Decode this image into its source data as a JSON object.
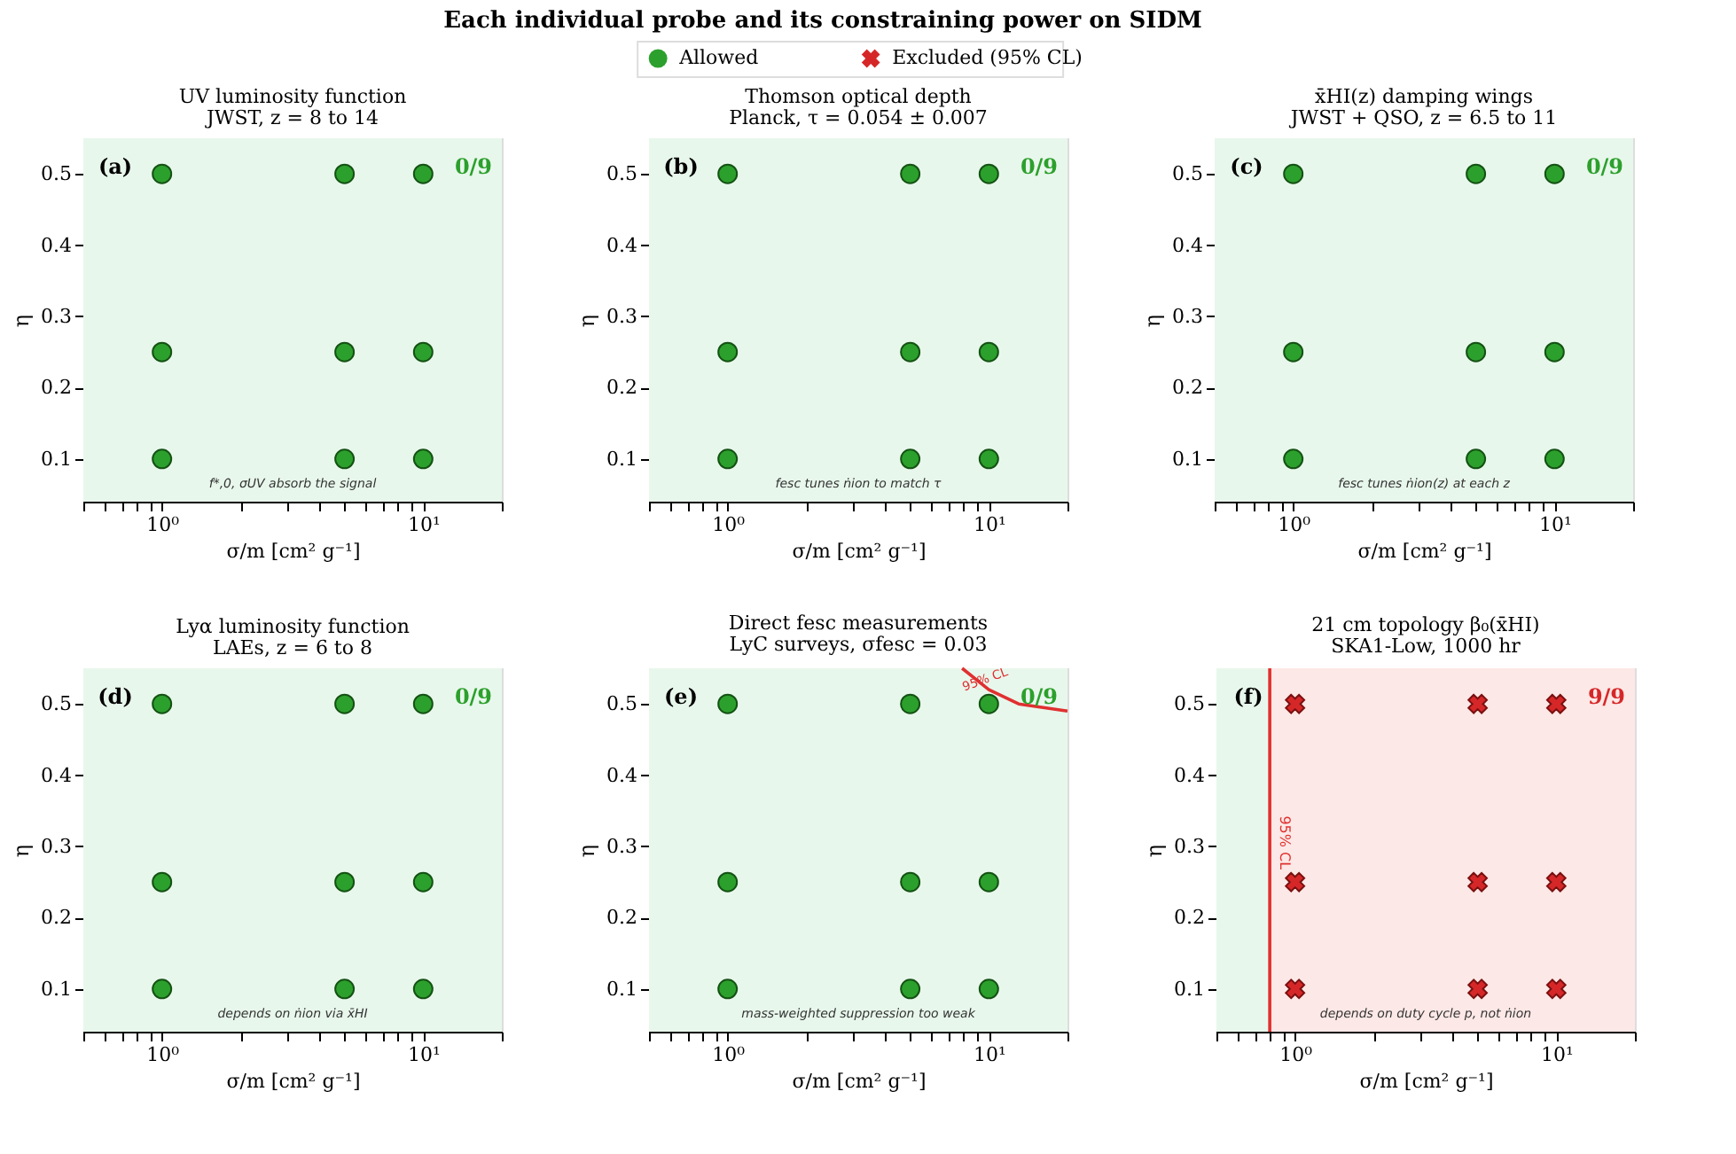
{
  "chart_data": [
    {
      "type": "other",
      "title": "Each individual probe and its constraining power on SIDM"
    },
    {
      "type": "scatter",
      "title": "UV luminosity function",
      "subtitle": "JWST, z = 8 to 14",
      "xlabel": "σ/m [cm² g⁻¹]",
      "ylabel": "η",
      "log": "x",
      "xlim": [
        0.5,
        20
      ],
      "ylim": [
        0.04,
        0.55
      ],
      "xticks": [
        {
          "value": 0.5,
          "label": null
        },
        {
          "value": 0.6,
          "label": null
        },
        {
          "value": 0.7,
          "label": null
        },
        {
          "value": 0.8,
          "label": null
        },
        {
          "value": 0.9,
          "label": null
        },
        {
          "value": 1,
          "label": "10⁰"
        },
        {
          "value": 2,
          "label": null
        },
        {
          "value": 3,
          "label": null
        },
        {
          "value": 4,
          "label": null
        },
        {
          "value": 5,
          "label": null
        },
        {
          "value": 6,
          "label": null
        },
        {
          "value": 7,
          "label": null
        },
        {
          "value": 8,
          "label": null
        },
        {
          "value": 9,
          "label": null
        },
        {
          "value": 10,
          "label": "10¹"
        },
        {
          "value": 20,
          "label": null
        }
      ],
      "yticks": [
        0.1,
        0.2,
        0.3,
        0.4,
        0.5
      ],
      "legend": "top",
      "bands": [
        {
          "axis": "x",
          "from": 0.5,
          "to": 20,
          "color": "#e8f7ec"
        }
      ],
      "series": [
        {
          "name": "Allowed",
          "type": "scatter",
          "marker": "circle",
          "color": "#2ca02c",
          "x": [
            1,
            5,
            10,
            1,
            5,
            10,
            1,
            5,
            10
          ],
          "values": [
            0.5,
            0.5,
            0.5,
            0.25,
            0.25,
            0.25,
            0.1,
            0.1,
            0.1
          ]
        }
      ],
      "annotations": [
        "(a)",
        "0/9",
        "f*,0, σUV absorb the signal"
      ]
    },
    {
      "type": "scatter",
      "title": "Thomson optical depth",
      "subtitle": "Planck, τ = 0.054 ± 0.007",
      "xlabel": "σ/m [cm² g⁻¹]",
      "ylabel": "η",
      "log": "x",
      "xlim": [
        0.5,
        20
      ],
      "ylim": [
        0.04,
        0.55
      ],
      "xticks": [
        {
          "value": 0.5,
          "label": null
        },
        {
          "value": 0.6,
          "label": null
        },
        {
          "value": 0.7,
          "label": null
        },
        {
          "value": 0.8,
          "label": null
        },
        {
          "value": 0.9,
          "label": null
        },
        {
          "value": 1,
          "label": "10⁰"
        },
        {
          "value": 2,
          "label": null
        },
        {
          "value": 3,
          "label": null
        },
        {
          "value": 4,
          "label": null
        },
        {
          "value": 5,
          "label": null
        },
        {
          "value": 6,
          "label": null
        },
        {
          "value": 7,
          "label": null
        },
        {
          "value": 8,
          "label": null
        },
        {
          "value": 9,
          "label": null
        },
        {
          "value": 10,
          "label": "10¹"
        },
        {
          "value": 20,
          "label": null
        }
      ],
      "yticks": [
        0.1,
        0.2,
        0.3,
        0.4,
        0.5
      ],
      "bands": [
        {
          "axis": "x",
          "from": 0.5,
          "to": 20,
          "color": "#e8f7ec"
        }
      ],
      "series": [
        {
          "type": "scatter",
          "marker": "circle",
          "color": "#2ca02c",
          "x": [
            1,
            5,
            10,
            1,
            5,
            10,
            1,
            5,
            10
          ],
          "values": [
            0.5,
            0.5,
            0.5,
            0.25,
            0.25,
            0.25,
            0.1,
            0.1,
            0.1
          ]
        }
      ],
      "annotations": [
        "(b)",
        "0/9",
        "fesc tunes ṅion to match τ"
      ]
    },
    {
      "type": "scatter",
      "title": "x̄HI(z) damping wings",
      "subtitle": "JWST + QSO, z = 6.5 to 11",
      "xlabel": "σ/m [cm² g⁻¹]",
      "ylabel": "η",
      "log": "x",
      "xlim": [
        0.5,
        20
      ],
      "ylim": [
        0.04,
        0.55
      ],
      "xticks": [
        {
          "value": 0.5,
          "label": null
        },
        {
          "value": 0.6,
          "label": null
        },
        {
          "value": 0.7,
          "label": null
        },
        {
          "value": 0.8,
          "label": null
        },
        {
          "value": 0.9,
          "label": null
        },
        {
          "value": 1,
          "label": "10⁰"
        },
        {
          "value": 2,
          "label": null
        },
        {
          "value": 3,
          "label": null
        },
        {
          "value": 4,
          "label": null
        },
        {
          "value": 5,
          "label": null
        },
        {
          "value": 6,
          "label": null
        },
        {
          "value": 7,
          "label": null
        },
        {
          "value": 8,
          "label": null
        },
        {
          "value": 9,
          "label": null
        },
        {
          "value": 10,
          "label": "10¹"
        },
        {
          "value": 20,
          "label": null
        }
      ],
      "yticks": [
        0.1,
        0.2,
        0.3,
        0.4,
        0.5
      ],
      "bands": [
        {
          "axis": "x",
          "from": 0.5,
          "to": 20,
          "color": "#e8f7ec"
        }
      ],
      "series": [
        {
          "type": "scatter",
          "marker": "circle",
          "color": "#2ca02c",
          "x": [
            1,
            5,
            10,
            1,
            5,
            10,
            1,
            5,
            10
          ],
          "values": [
            0.5,
            0.5,
            0.5,
            0.25,
            0.25,
            0.25,
            0.1,
            0.1,
            0.1
          ]
        }
      ],
      "annotations": [
        "(c)",
        "0/9",
        "fesc tunes ṅion(z) at each z"
      ]
    },
    {
      "type": "scatter",
      "title": "Lyα luminosity function",
      "subtitle": "LAEs, z = 6 to 8",
      "xlabel": "σ/m [cm² g⁻¹]",
      "ylabel": "η",
      "log": "x",
      "xlim": [
        0.5,
        20
      ],
      "ylim": [
        0.04,
        0.55
      ],
      "xticks": [
        {
          "value": 0.5,
          "label": null
        },
        {
          "value": 0.6,
          "label": null
        },
        {
          "value": 0.7,
          "label": null
        },
        {
          "value": 0.8,
          "label": null
        },
        {
          "value": 0.9,
          "label": null
        },
        {
          "value": 1,
          "label": "10⁰"
        },
        {
          "value": 2,
          "label": null
        },
        {
          "value": 3,
          "label": null
        },
        {
          "value": 4,
          "label": null
        },
        {
          "value": 5,
          "label": null
        },
        {
          "value": 6,
          "label": null
        },
        {
          "value": 7,
          "label": null
        },
        {
          "value": 8,
          "label": null
        },
        {
          "value": 9,
          "label": null
        },
        {
          "value": 10,
          "label": "10¹"
        },
        {
          "value": 20,
          "label": null
        }
      ],
      "yticks": [
        0.1,
        0.2,
        0.3,
        0.4,
        0.5
      ],
      "bands": [
        {
          "axis": "x",
          "from": 0.5,
          "to": 20,
          "color": "#e8f7ec"
        }
      ],
      "series": [
        {
          "type": "scatter",
          "marker": "circle",
          "color": "#2ca02c",
          "x": [
            1,
            5,
            10,
            1,
            5,
            10,
            1,
            5,
            10
          ],
          "values": [
            0.5,
            0.5,
            0.5,
            0.25,
            0.25,
            0.25,
            0.1,
            0.1,
            0.1
          ]
        }
      ],
      "annotations": [
        "(d)",
        "0/9",
        "depends on ṅion via x̄HI"
      ]
    },
    {
      "type": "scatter",
      "title": "Direct fesc measurements",
      "subtitle": "LyC surveys, σfesc = 0.03",
      "xlabel": "σ/m [cm² g⁻¹]",
      "ylabel": "η",
      "log": "x",
      "xlim": [
        0.5,
        20
      ],
      "ylim": [
        0.04,
        0.55
      ],
      "xticks": [
        {
          "value": 0.5,
          "label": null
        },
        {
          "value": 0.6,
          "label": null
        },
        {
          "value": 0.7,
          "label": null
        },
        {
          "value": 0.8,
          "label": null
        },
        {
          "value": 0.9,
          "label": null
        },
        {
          "value": 1,
          "label": "10⁰"
        },
        {
          "value": 2,
          "label": null
        },
        {
          "value": 3,
          "label": null
        },
        {
          "value": 4,
          "label": null
        },
        {
          "value": 5,
          "label": null
        },
        {
          "value": 6,
          "label": null
        },
        {
          "value": 7,
          "label": null
        },
        {
          "value": 8,
          "label": null
        },
        {
          "value": 9,
          "label": null
        },
        {
          "value": 10,
          "label": "10¹"
        },
        {
          "value": 20,
          "label": null
        }
      ],
      "yticks": [
        0.1,
        0.2,
        0.3,
        0.4,
        0.5
      ],
      "bands": [
        {
          "axis": "x",
          "from": 0.5,
          "to": 20,
          "color": "#e8f7ec"
        }
      ],
      "series": [
        {
          "name": "95% CL",
          "type": "line",
          "line_style": "solid",
          "color": "#e03030",
          "x": [
            7.9,
            10,
            13,
            20
          ],
          "values": [
            0.55,
            0.52,
            0.5,
            0.49
          ]
        },
        {
          "type": "scatter",
          "marker": "circle",
          "color": "#2ca02c",
          "x": [
            1,
            5,
            10,
            1,
            5,
            10,
            1,
            5,
            10
          ],
          "values": [
            0.5,
            0.5,
            0.5,
            0.25,
            0.25,
            0.25,
            0.1,
            0.1,
            0.1
          ]
        }
      ],
      "annotations": [
        "(e)",
        "0/9",
        "mass-weighted suppression too weak"
      ]
    },
    {
      "type": "scatter",
      "title": "21 cm topology β₀(x̄HI)",
      "subtitle": "SKA1-Low, 1000 hr",
      "xlabel": "σ/m [cm² g⁻¹]",
      "ylabel": "η",
      "log": "x",
      "xlim": [
        0.5,
        20
      ],
      "ylim": [
        0.04,
        0.55
      ],
      "xticks": [
        {
          "value": 0.5,
          "label": null
        },
        {
          "value": 0.6,
          "label": null
        },
        {
          "value": 0.7,
          "label": null
        },
        {
          "value": 0.8,
          "label": null
        },
        {
          "value": 0.9,
          "label": null
        },
        {
          "value": 1,
          "label": "10⁰"
        },
        {
          "value": 2,
          "label": null
        },
        {
          "value": 3,
          "label": null
        },
        {
          "value": 4,
          "label": null
        },
        {
          "value": 5,
          "label": null
        },
        {
          "value": 6,
          "label": null
        },
        {
          "value": 7,
          "label": null
        },
        {
          "value": 8,
          "label": null
        },
        {
          "value": 9,
          "label": null
        },
        {
          "value": 10,
          "label": "10¹"
        },
        {
          "value": 20,
          "label": null
        }
      ],
      "yticks": [
        0.1,
        0.2,
        0.3,
        0.4,
        0.5
      ],
      "legend": "top",
      "bands": [
        {
          "axis": "x",
          "from": 0.5,
          "to": 0.8,
          "color": "#e8f7ec"
        },
        {
          "axis": "x",
          "from": 0.8,
          "to": 20,
          "color": "#fce8e6"
        }
      ],
      "ref_lines": [
        {
          "axis": "x",
          "value": 0.8,
          "label": "95% CL",
          "color": "#e03030"
        }
      ],
      "series": [
        {
          "name": "Excluded (95% CL)",
          "type": "scatter",
          "marker": "cross",
          "color": "#d62728",
          "x": [
            1,
            5,
            10,
            1,
            5,
            10,
            1,
            5,
            10
          ],
          "values": [
            0.5,
            0.5,
            0.5,
            0.25,
            0.25,
            0.25,
            0.1,
            0.1,
            0.1
          ]
        }
      ],
      "annotations": [
        "(f)",
        "9/9",
        "depends on duty cycle p, not ṅion"
      ]
    }
  ]
}
